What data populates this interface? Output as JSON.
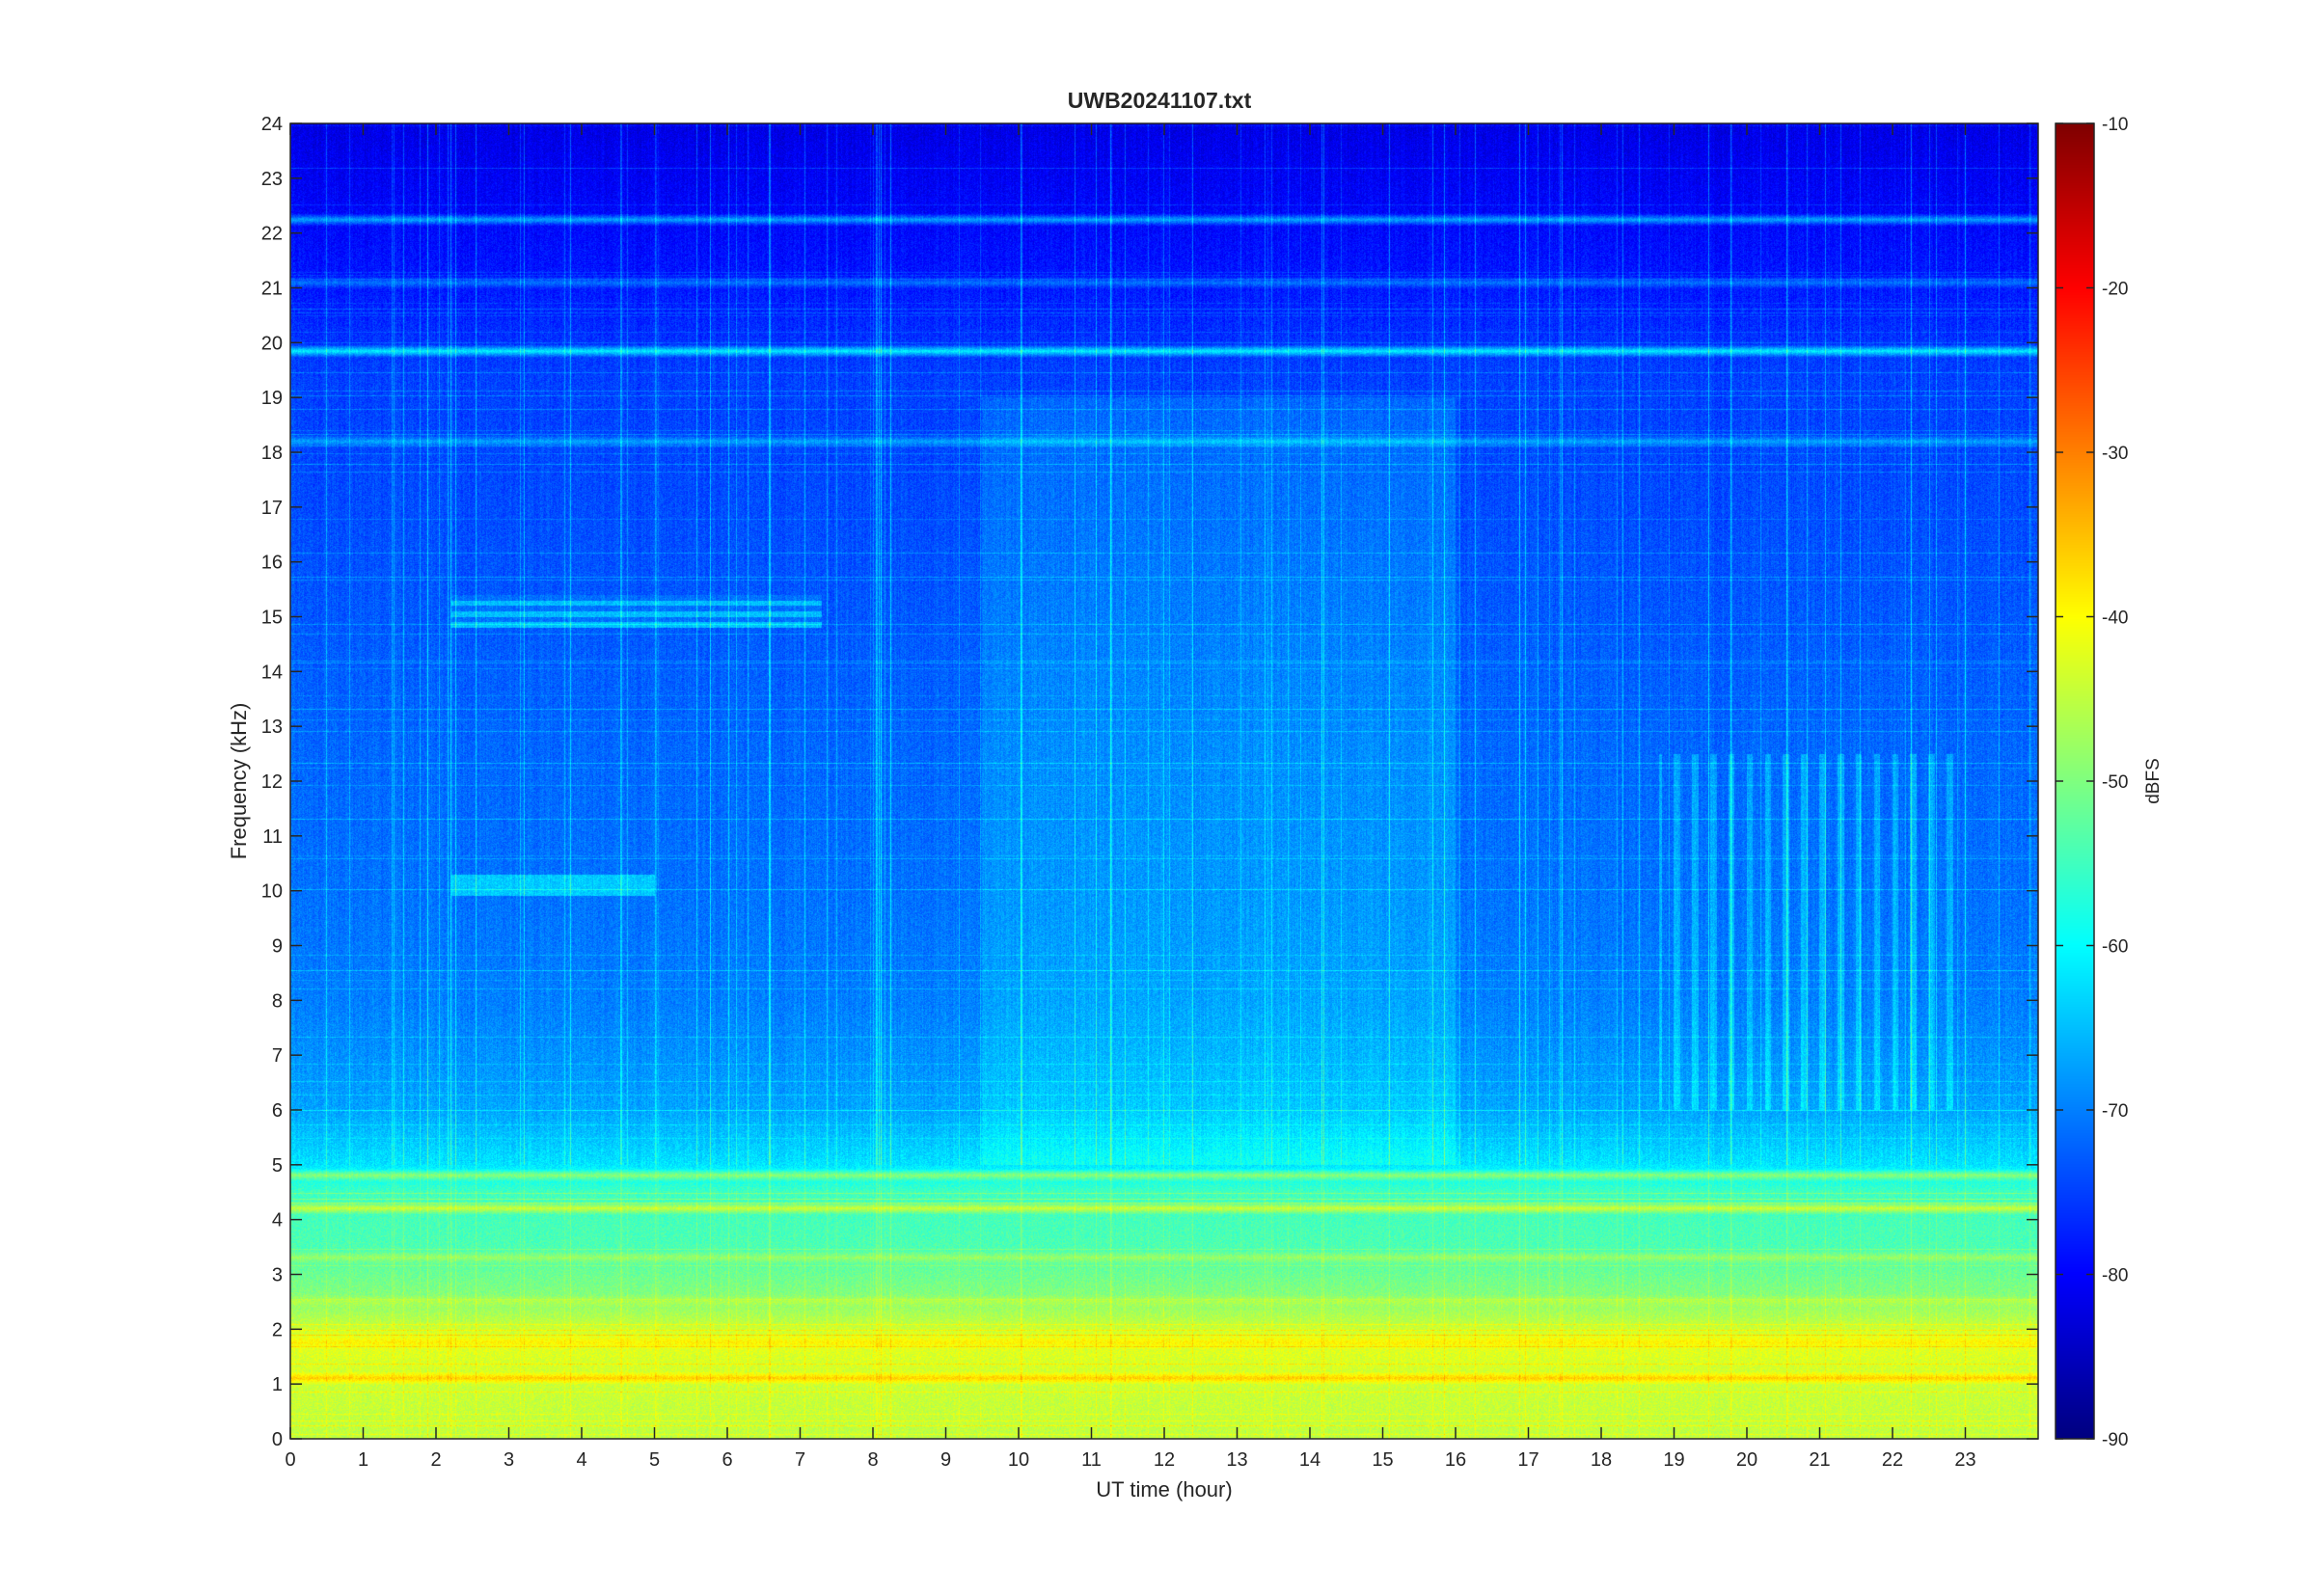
{
  "chart_data": {
    "type": "heatmap",
    "title": "UWB20241107.txt",
    "xlabel": "UT time (hour)",
    "ylabel": "Frequency (kHz)",
    "xlim": [
      0,
      24
    ],
    "ylim": [
      0,
      24
    ],
    "x_ticks": [
      0,
      1,
      2,
      3,
      4,
      5,
      6,
      7,
      8,
      9,
      10,
      11,
      12,
      13,
      14,
      15,
      16,
      17,
      18,
      19,
      20,
      21,
      22,
      23
    ],
    "y_ticks": [
      0,
      1,
      2,
      3,
      4,
      5,
      6,
      7,
      8,
      9,
      10,
      11,
      12,
      13,
      14,
      15,
      16,
      17,
      18,
      19,
      20,
      21,
      22,
      23,
      24
    ],
    "colorbar": {
      "label": "dBFS",
      "colormap": "jet",
      "range": [
        -90,
        -10
      ],
      "ticks": [
        -90,
        -80,
        -70,
        -60,
        -50,
        -40,
        -30,
        -20,
        -10
      ]
    },
    "z_profile_by_frequency_khz": [
      [
        0,
        -45
      ],
      [
        1,
        -44
      ],
      [
        1.8,
        -42
      ],
      [
        2.5,
        -49
      ],
      [
        3.5,
        -54
      ],
      [
        4.5,
        -55
      ],
      [
        5,
        -62
      ],
      [
        6,
        -67
      ],
      [
        8,
        -70
      ],
      [
        10,
        -71
      ],
      [
        13,
        -72
      ],
      [
        17,
        -74
      ],
      [
        19.5,
        -75
      ],
      [
        21,
        -78
      ],
      [
        24,
        -82
      ]
    ],
    "narrowband_lines_khz_dbfs": [
      [
        19.85,
        -61
      ],
      [
        18.2,
        -67
      ],
      [
        22.25,
        -67
      ],
      [
        21.1,
        -71
      ],
      [
        1.1,
        -36
      ],
      [
        1.75,
        -39
      ],
      [
        4.2,
        -44
      ],
      [
        4.8,
        -49
      ],
      [
        3.3,
        -48
      ],
      [
        2.5,
        -46
      ]
    ],
    "grid": false,
    "legend": "colorbar-right"
  }
}
